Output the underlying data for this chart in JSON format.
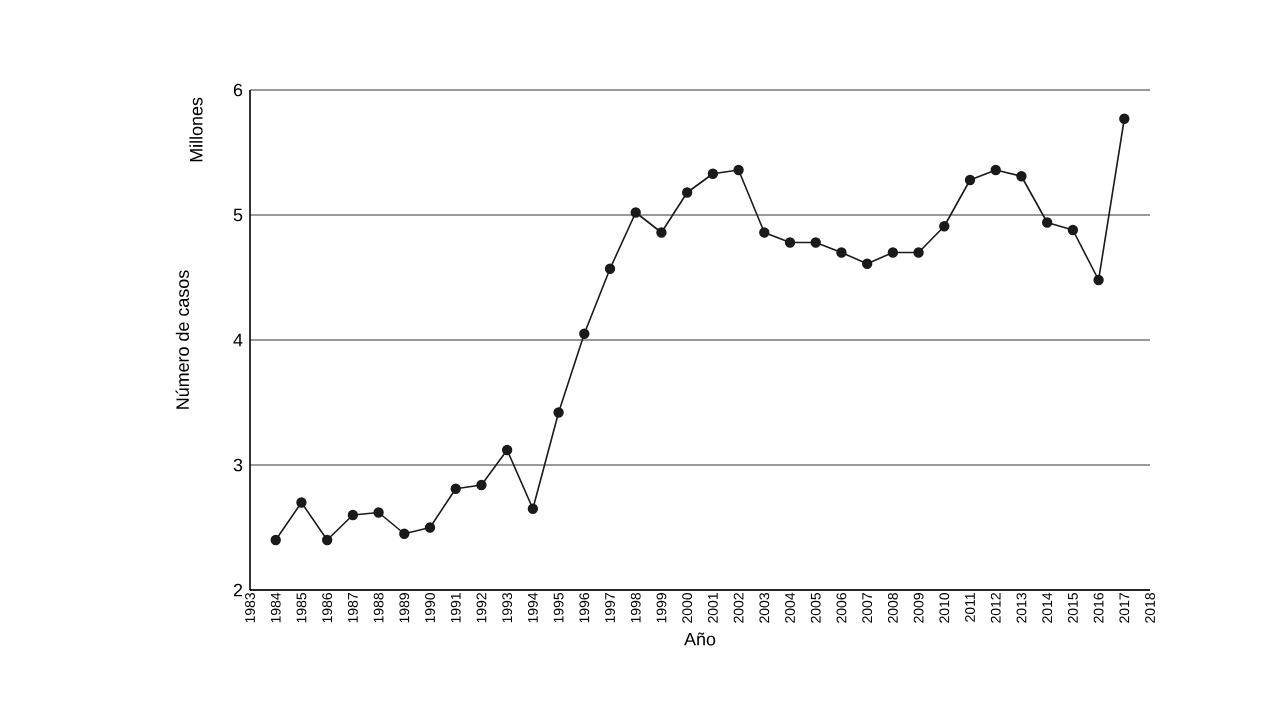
{
  "chart_data": {
    "type": "line",
    "xlabel": "Año",
    "ylabel": "Número de casos",
    "annotations": [
      "Millones"
    ],
    "categories": [
      "1983",
      "1984",
      "1985",
      "1986",
      "1987",
      "1988",
      "1989",
      "1990",
      "1991",
      "1992",
      "1993",
      "1994",
      "1995",
      "1996",
      "1997",
      "1998",
      "1999",
      "2000",
      "2001",
      "2002",
      "2003",
      "2004",
      "2005",
      "2006",
      "2007",
      "2008",
      "2009",
      "2010",
      "2011",
      "2012",
      "2013",
      "2014",
      "2015",
      "2016",
      "2017",
      "2018"
    ],
    "values": [
      null,
      2.4,
      2.7,
      2.4,
      2.6,
      2.62,
      2.45,
      2.5,
      2.81,
      2.84,
      3.12,
      2.65,
      3.42,
      4.05,
      4.57,
      5.02,
      4.86,
      5.18,
      5.33,
      5.36,
      4.86,
      4.78,
      4.78,
      4.7,
      4.61,
      4.7,
      4.7,
      4.91,
      5.28,
      5.36,
      5.31,
      4.94,
      4.88,
      4.48,
      5.77,
      null
    ],
    "color": "#1a1a1a",
    "marker": "circle",
    "line_style": "solid",
    "grid": "y",
    "ylim": [
      2,
      6
    ],
    "yticks": [
      2,
      3,
      4,
      5,
      6
    ]
  }
}
